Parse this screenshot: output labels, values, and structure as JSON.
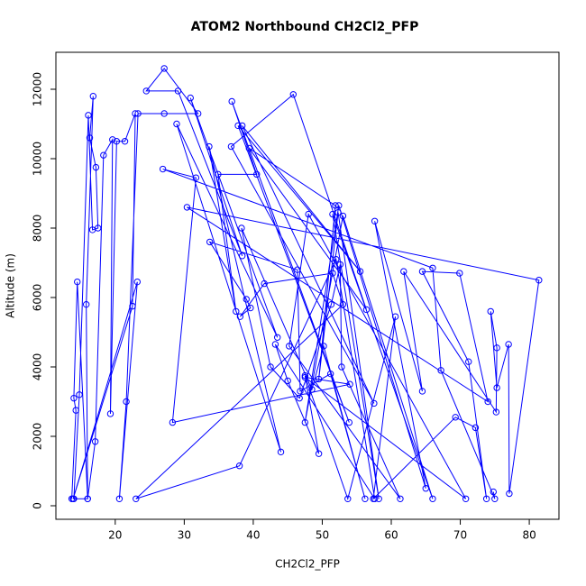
{
  "chart_data": {
    "type": "line",
    "title": "ATOM2 Northbound CH2Cl2_PFP",
    "x_label": "CH2Cl2_PFP",
    "y_label": "Altitude (m)",
    "xlim": [
      11.4,
      84.3
    ],
    "ylim": [
      -390,
      13065
    ],
    "xticks": [
      20,
      30,
      40,
      50,
      60,
      70,
      80
    ],
    "yticks": [
      0,
      2000,
      4000,
      6000,
      8000,
      10000,
      12000
    ],
    "markers": "open-circle",
    "grid": false,
    "series": [
      {
        "name": "CH2Cl2_PFP",
        "color": "#0000ff",
        "x": [
          13.7,
          14.3,
          14.0,
          14.5,
          16.0,
          15.8,
          16.8,
          16.3,
          17.2,
          17.5,
          16.7,
          16.1,
          14.8,
          14.0,
          16.0,
          17.1,
          18.3,
          19.6,
          19.3,
          20.2,
          21.4,
          22.9,
          22.5,
          13.9,
          23.2,
          20.6,
          21.6,
          23.3,
          27.1,
          32.0,
          27.1,
          24.5,
          29.1,
          38.4,
          30.9,
          43.5,
          28.9,
          44.0,
          33.6,
          37.5,
          34.9,
          40.5,
          36.9,
          53.9,
          37.8,
          55.5,
          38.4,
          57.5,
          36.8,
          45.8,
          56.4,
          39.4,
          51.9,
          49.5,
          52.3,
          58.2,
          51.5,
          66.0,
          53.0,
          47.5,
          52.4,
          65.0,
          57.6,
          64.5,
          61.8,
          75.2,
          75.3,
          74.4,
          75.3,
          77.0,
          77.1,
          81.4,
          30.4,
          74.0,
          69.9,
          64.5,
          71.2,
          73.8,
          72.2,
          69.3,
          57.4,
          60.6,
          53.7,
          47.5,
          49.5,
          45.0,
          43.2,
          57.6,
          52.0,
          38.0,
          23.0,
          53.0,
          51.5,
          41.6,
          38.1,
          39.6,
          39.0,
          33.7,
          46.4,
          46.8,
          51.2,
          56.2,
          50.2,
          48.5,
          38.3,
          42.5,
          46.7,
          51.3,
          52.6,
          52.8,
          61.3,
          45.2,
          48.0,
          70.8,
          47.5,
          54.0,
          28.3,
          31.7,
          26.9,
          66.0,
          67.2,
          75.0,
          74.8
        ],
        "values": [
          200,
          2750,
          3100,
          6450,
          200,
          5800,
          11800,
          10600,
          9750,
          8000,
          7950,
          11250,
          3200,
          200,
          200,
          1850,
          10100,
          10550,
          2650,
          10500,
          10500,
          11300,
          5750,
          200,
          6450,
          200,
          3000,
          11300,
          11300,
          11300,
          12600,
          11950,
          11950,
          7200,
          11750,
          4850,
          11000,
          1550,
          10350,
          5600,
          9550,
          9550,
          11650,
          2400,
          10950,
          6750,
          10950,
          2950,
          10350,
          11850,
          5650,
          10300,
          8650,
          3650,
          8450,
          200,
          8400,
          200,
          8350,
          2400,
          8650,
          500,
          8200,
          3300,
          6750,
          2700,
          4550,
          5600,
          3400,
          4650,
          350,
          6500,
          8600,
          3000,
          6700,
          6750,
          4150,
          200,
          2250,
          2550,
          200,
          5450,
          200,
          3750,
          1500,
          3600,
          4650,
          200,
          7100,
          1150,
          200,
          5800,
          6700,
          6400,
          5450,
          5700,
          5950,
          7600,
          6800,
          3300,
          3800,
          200,
          4600,
          3350,
          8000,
          4000,
          3100,
          5800,
          6950,
          4000,
          200,
          4600,
          8400,
          200,
          3700,
          3500,
          2400,
          9450,
          9700,
          6850,
          3900,
          200,
          400
        ]
      }
    ]
  }
}
